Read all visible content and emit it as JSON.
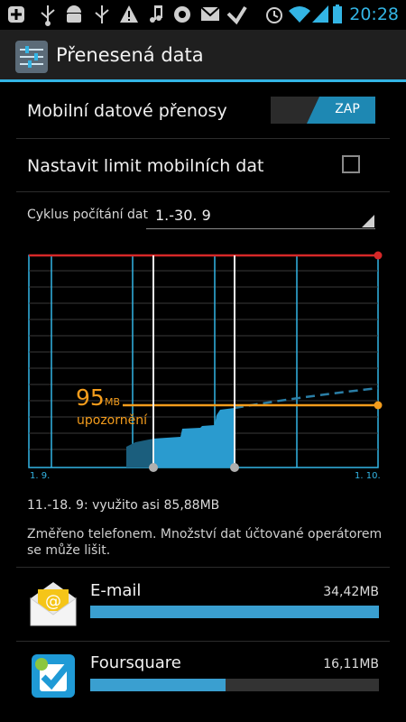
{
  "status_bar": {
    "time": "20:28",
    "icons": [
      "add-icon",
      "usb-icon",
      "android-debug-icon",
      "usb-icon",
      "warning-icon",
      "music-icon",
      "sync-icon",
      "email-icon",
      "foursquare-check-icon",
      "alarm-icon",
      "wifi-icon",
      "signal-icon",
      "battery-icon"
    ],
    "accent_color": "#33b5e5"
  },
  "action_bar": {
    "title": "Přenesená data",
    "icon": "data-usage-icon"
  },
  "mobile_data": {
    "label": "Mobilní datové přenosy",
    "toggle_label": "ZAP",
    "enabled": true
  },
  "limit": {
    "label": "Nastavit limit mobilních dat",
    "checked": false
  },
  "cycle": {
    "label": "Cyklus počítání dat",
    "value": "1.-30. 9"
  },
  "chart_data": {
    "type": "area",
    "title": "",
    "x_labels": [
      "1. 9.",
      "1. 10."
    ],
    "warning": {
      "value": "95",
      "unit": "MB",
      "label": "upozornění",
      "color": "#f39c1c"
    },
    "limit_line_color": "#d62828",
    "selection": {
      "start_day": 11,
      "end_day": 18
    },
    "series_color": "#33b5e5"
  },
  "usage": {
    "summary": "11.-18. 9: využito asi 85,88MB",
    "note": "Změřeno telefonem. Množství dat účtované operátorem se může lišit."
  },
  "apps": [
    {
      "name": "E-mail",
      "size": "34,42MB",
      "fraction": 1.0,
      "icon": "email-app-icon"
    },
    {
      "name": "Foursquare",
      "size": "16,11MB",
      "fraction": 0.468,
      "icon": "foursquare-app-icon"
    }
  ]
}
